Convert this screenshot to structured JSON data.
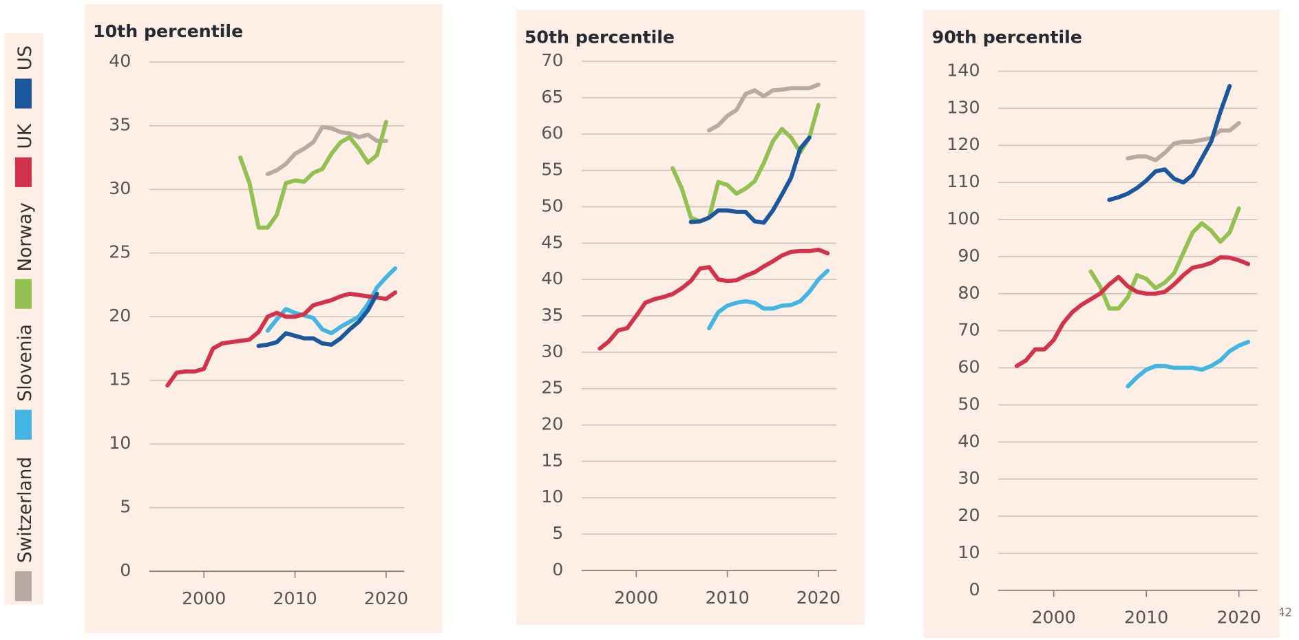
{
  "chart_data": [
    {
      "type": "line",
      "title": "10th percentile",
      "x": [
        1996,
        1997,
        1998,
        1999,
        2000,
        2001,
        2002,
        2003,
        2004,
        2005,
        2006,
        2007,
        2008,
        2009,
        2010,
        2011,
        2012,
        2013,
        2014,
        2015,
        2016,
        2017,
        2018,
        2019,
        2020,
        2021
      ],
      "series": [
        {
          "name": "Switzerland",
          "color": "#b8aaa2",
          "values": [
            null,
            null,
            null,
            null,
            null,
            null,
            null,
            null,
            null,
            null,
            null,
            31.2,
            31.5,
            32.0,
            32.8,
            33.2,
            33.7,
            34.9,
            34.8,
            34.5,
            34.4,
            34.1,
            34.3,
            33.8,
            33.8,
            null
          ]
        },
        {
          "name": "Slovenia",
          "color": "#43b5e3",
          "values": [
            null,
            null,
            null,
            null,
            null,
            null,
            null,
            null,
            null,
            null,
            null,
            18.9,
            19.8,
            20.6,
            20.3,
            20.1,
            19.9,
            19.0,
            18.7,
            19.2,
            19.6,
            20.0,
            21.0,
            22.3,
            23.1,
            23.8
          ]
        },
        {
          "name": "Norway",
          "color": "#92c151",
          "values": [
            null,
            null,
            null,
            null,
            null,
            null,
            null,
            null,
            32.5,
            30.5,
            27,
            27,
            28,
            30.5,
            30.7,
            30.6,
            31.3,
            31.6,
            32.8,
            33.7,
            34.1,
            33.2,
            32.1,
            32.7,
            35.3,
            null
          ]
        },
        {
          "name": "UK",
          "color": "#d3334a",
          "values": [
            14.6,
            15.6,
            15.7,
            15.7,
            15.9,
            17.5,
            17.9,
            18.0,
            18.1,
            18.2,
            18.8,
            20.0,
            20.3,
            20.0,
            20.0,
            20.2,
            20.9,
            21.1,
            21.3,
            21.6,
            21.8,
            21.7,
            21.6,
            21.5,
            21.4,
            21.9
          ]
        },
        {
          "name": "US",
          "color": "#1a579c",
          "values": [
            null,
            null,
            null,
            null,
            null,
            null,
            null,
            null,
            null,
            null,
            17.7,
            17.8,
            18.0,
            18.7,
            18.5,
            18.3,
            18.3,
            17.9,
            17.8,
            18.3,
            19.0,
            19.6,
            20.5,
            21.8,
            null,
            null
          ]
        }
      ],
      "xlim": [
        1994,
        2022
      ],
      "xticks": [
        2000,
        2010,
        2020
      ],
      "ylim": [
        0,
        40
      ],
      "yticks": [
        0,
        5,
        10,
        15,
        20,
        25,
        30,
        35,
        40
      ],
      "grid": true
    },
    {
      "type": "line",
      "title": "50th percentile",
      "x": [
        1996,
        1997,
        1998,
        1999,
        2000,
        2001,
        2002,
        2003,
        2004,
        2005,
        2006,
        2007,
        2008,
        2009,
        2010,
        2011,
        2012,
        2013,
        2014,
        2015,
        2016,
        2017,
        2018,
        2019,
        2020,
        2021
      ],
      "series": [
        {
          "name": "Switzerland",
          "color": "#b8aaa2",
          "values": [
            null,
            null,
            null,
            null,
            null,
            null,
            null,
            null,
            null,
            null,
            null,
            null,
            60.5,
            61.2,
            62.5,
            63.3,
            65.5,
            66,
            65.2,
            66,
            66.1,
            66.3,
            66.3,
            66.3,
            66.8,
            null
          ]
        },
        {
          "name": "Slovenia",
          "color": "#43b5e3",
          "values": [
            null,
            null,
            null,
            null,
            null,
            null,
            null,
            null,
            null,
            null,
            null,
            null,
            33.3,
            35.5,
            36.4,
            36.8,
            37,
            36.8,
            36,
            36,
            36.4,
            36.5,
            37,
            38.3,
            40,
            41.2
          ]
        },
        {
          "name": "Norway",
          "color": "#92c151",
          "values": [
            null,
            null,
            null,
            null,
            null,
            null,
            null,
            null,
            55.3,
            52.5,
            48.5,
            48,
            48.5,
            53.4,
            53,
            51.8,
            52.5,
            53.5,
            56,
            59,
            60.7,
            59.5,
            57.5,
            59.5,
            64,
            null
          ]
        },
        {
          "name": "UK",
          "color": "#d3334a",
          "values": [
            30.5,
            31.5,
            33,
            33.3,
            35,
            36.8,
            37.3,
            37.6,
            38,
            38.8,
            39.8,
            41.5,
            41.7,
            40,
            39.8,
            39.9,
            40.5,
            41,
            41.8,
            42.5,
            43.3,
            43.8,
            43.9,
            43.9,
            44.1,
            43.6
          ]
        },
        {
          "name": "US",
          "color": "#1a579c",
          "values": [
            null,
            null,
            null,
            null,
            null,
            null,
            null,
            null,
            null,
            null,
            47.9,
            48,
            48.5,
            49.5,
            49.5,
            49.3,
            49.3,
            48,
            47.8,
            49.5,
            51.7,
            54,
            58,
            59.5,
            null,
            null
          ]
        }
      ],
      "xlim": [
        1994,
        2022
      ],
      "xticks": [
        2000,
        2010,
        2020
      ],
      "ylim": [
        0,
        70
      ],
      "yticks": [
        0,
        5,
        10,
        15,
        20,
        25,
        30,
        35,
        40,
        45,
        50,
        55,
        60,
        65,
        70
      ],
      "grid": true
    },
    {
      "type": "line",
      "title": "90th percentile",
      "x": [
        1996,
        1997,
        1998,
        1999,
        2000,
        2001,
        2002,
        2003,
        2004,
        2005,
        2006,
        2007,
        2008,
        2009,
        2010,
        2011,
        2012,
        2013,
        2014,
        2015,
        2016,
        2017,
        2018,
        2019,
        2020,
        2021
      ],
      "series": [
        {
          "name": "Switzerland",
          "color": "#b8aaa2",
          "values": [
            null,
            null,
            null,
            null,
            null,
            null,
            null,
            null,
            null,
            null,
            null,
            null,
            116.5,
            117,
            117,
            116,
            118,
            120.5,
            121,
            121,
            121.5,
            122,
            124,
            124,
            126,
            null
          ]
        },
        {
          "name": "Slovenia",
          "color": "#43b5e3",
          "values": [
            null,
            null,
            null,
            null,
            null,
            null,
            null,
            null,
            null,
            null,
            null,
            null,
            55,
            57.5,
            59.5,
            60.5,
            60.5,
            60,
            60,
            60,
            59.5,
            60.5,
            62,
            64.5,
            66,
            67
          ]
        },
        {
          "name": "Norway",
          "color": "#92c151",
          "values": [
            null,
            null,
            null,
            null,
            null,
            null,
            null,
            null,
            86,
            82,
            76,
            76,
            79,
            85,
            84,
            81.5,
            83,
            85.5,
            91,
            96.5,
            99,
            97,
            94,
            96.5,
            103,
            null
          ]
        },
        {
          "name": "UK",
          "color": "#d3334a",
          "values": [
            60.5,
            62,
            65,
            65,
            67.5,
            72,
            75,
            77,
            78.5,
            80,
            82.5,
            84.5,
            82,
            80.5,
            80,
            80,
            80.5,
            82.5,
            85,
            87,
            87.5,
            88.3,
            89.8,
            89.7,
            89,
            88
          ]
        },
        {
          "name": "US",
          "color": "#1a579c",
          "values": [
            null,
            null,
            null,
            null,
            null,
            null,
            null,
            null,
            null,
            null,
            105.3,
            106,
            107,
            108.5,
            110.5,
            113,
            113.5,
            111,
            110,
            112,
            116.5,
            121,
            129,
            136,
            null,
            null
          ]
        }
      ],
      "xlim": [
        1994,
        2022
      ],
      "xticks": [
        2000,
        2010,
        2020
      ],
      "ylim": [
        0,
        140
      ],
      "yticks": [
        0,
        10,
        20,
        30,
        40,
        50,
        60,
        70,
        80,
        90,
        100,
        110,
        120,
        130,
        140
      ],
      "grid": true
    }
  ],
  "page_number": "42"
}
